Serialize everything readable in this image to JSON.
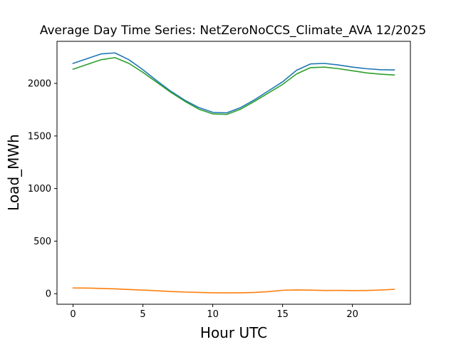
{
  "chart_data": {
    "type": "line",
    "title": "Average Day Time Series: NetZeroNoCCS_Climate_AVA 12/2025",
    "xlabel": "Hour UTC",
    "ylabel": "Load_MWh",
    "xlim": [
      -1.15,
      24.15
    ],
    "ylim": [
      -100,
      2400
    ],
    "xticks": [
      0,
      5,
      10,
      15,
      20
    ],
    "yticks": [
      0,
      500,
      1000,
      1500,
      2000
    ],
    "grid": false,
    "x": [
      0,
      1,
      2,
      3,
      4,
      5,
      6,
      7,
      8,
      9,
      10,
      11,
      12,
      13,
      14,
      15,
      16,
      17,
      18,
      19,
      20,
      21,
      22,
      23
    ],
    "series": [
      {
        "color": "#1f77b4",
        "values": [
          2190,
          2235,
          2280,
          2290,
          2225,
          2130,
          2025,
          1925,
          1840,
          1770,
          1725,
          1720,
          1770,
          1845,
          1930,
          2015,
          2125,
          2185,
          2190,
          2175,
          2155,
          2140,
          2130,
          2128
        ]
      },
      {
        "color": "#ff7f0e",
        "values": [
          55,
          54,
          50,
          46,
          40,
          34,
          28,
          21,
          16,
          12,
          9,
          8,
          9,
          12,
          20,
          33,
          36,
          34,
          31,
          32,
          30,
          31,
          35,
          42
        ]
      },
      {
        "color": "#2ca02c",
        "values": [
          2135,
          2180,
          2225,
          2245,
          2190,
          2105,
          2010,
          1915,
          1830,
          1755,
          1710,
          1705,
          1755,
          1830,
          1910,
          1990,
          2090,
          2150,
          2155,
          2140,
          2120,
          2100,
          2088,
          2080
        ]
      }
    ]
  }
}
